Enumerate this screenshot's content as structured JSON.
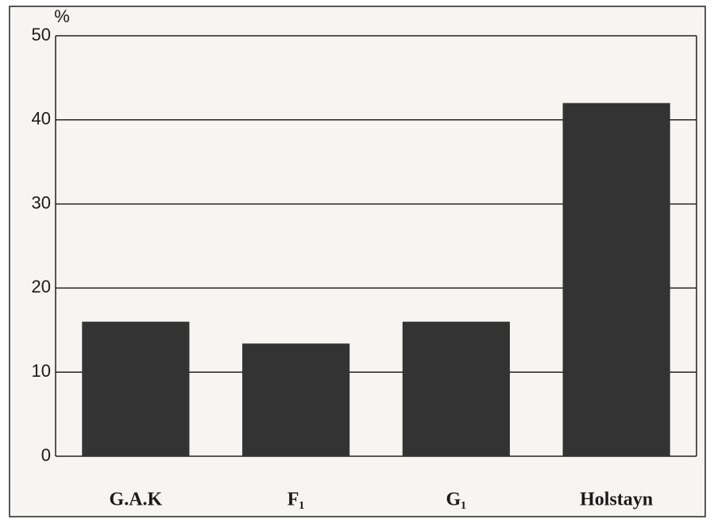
{
  "chart_data": {
    "type": "bar",
    "y_label": "%",
    "categories": [
      "G.A.K",
      "F₁",
      "G₁",
      "Holstayn"
    ],
    "values": [
      16,
      13.4,
      16,
      42
    ],
    "color": "#333333",
    "ylim": [
      0,
      50
    ],
    "yticks": [
      0,
      10,
      20,
      30,
      40,
      50
    ],
    "grid": true
  }
}
